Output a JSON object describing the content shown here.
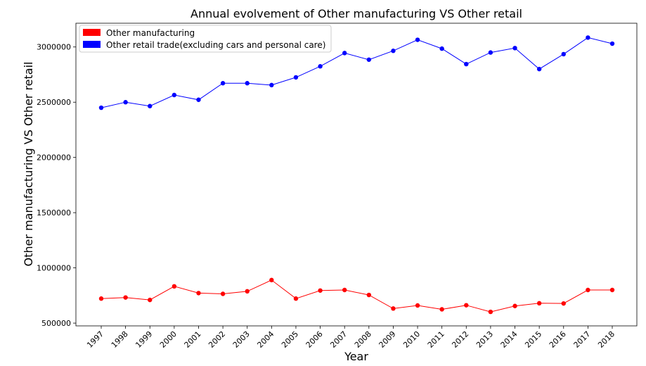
{
  "chart_data": {
    "type": "line",
    "title": "Annual evolvement of Other manufacturing  VS  Other retail",
    "xlabel": "Year",
    "ylabel": "Other manufacturing  VS  Other retail",
    "categories": [
      "1997",
      "1998",
      "1999",
      "2000",
      "2001",
      "2002",
      "2003",
      "2004",
      "2005",
      "2006",
      "2007",
      "2008",
      "2009",
      "2010",
      "2011",
      "2012",
      "2013",
      "2014",
      "2015",
      "2016",
      "2017",
      "2018"
    ],
    "ylim": [
      475000,
      3215000
    ],
    "yticks": [
      500000,
      1000000,
      1500000,
      2000000,
      2500000,
      3000000
    ],
    "ytick_labels": [
      "500000",
      "1000000",
      "1500000",
      "2000000",
      "2500000",
      "3000000"
    ],
    "grid": false,
    "legend_position": "top-left",
    "series": [
      {
        "name": "Other manufacturing",
        "color": "#ff0000",
        "values": [
          722000,
          732000,
          710000,
          833000,
          772000,
          765000,
          788000,
          890000,
          722000,
          795000,
          800000,
          755000,
          632000,
          660000,
          625000,
          662000,
          602000,
          655000,
          680000,
          678000,
          800000,
          800000
        ]
      },
      {
        "name": "Other retail trade(excluding cars and personal care)",
        "color": "#0000ff",
        "values": [
          2450000,
          2500000,
          2465000,
          2565000,
          2522000,
          2672000,
          2672000,
          2655000,
          2725000,
          2825000,
          2945000,
          2885000,
          2965000,
          3065000,
          2985000,
          2845000,
          2950000,
          2990000,
          2800000,
          2935000,
          3085000,
          3030000
        ]
      }
    ]
  }
}
